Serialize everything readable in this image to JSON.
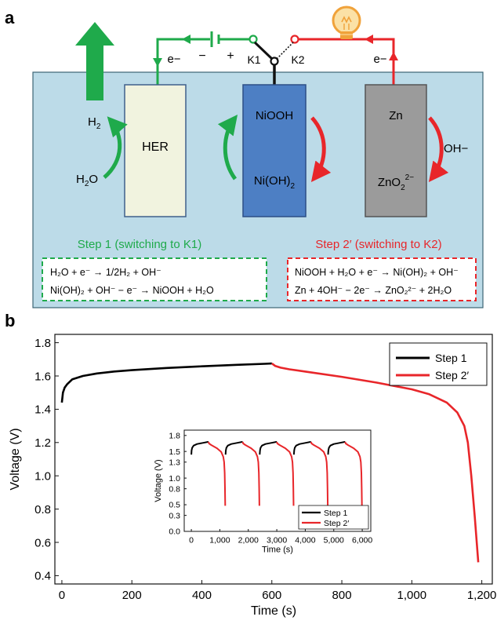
{
  "panel_a": {
    "panel_label": "a",
    "electrodes": {
      "her": {
        "label": "HER"
      },
      "nickel": {
        "top": "NiOOH",
        "bottom": "Ni(OH)",
        "bottom_sub": "2"
      },
      "zinc": {
        "top": "Zn",
        "bottom": "ZnO",
        "bottom_sub": "2",
        "bottom_sup": "2−"
      }
    },
    "gas_labels": {
      "h2": "H",
      "h2_sub": "2",
      "h2o": "H",
      "h2o_sub": "2",
      "h2o_tail": "O"
    },
    "ion_label": "OH−",
    "switch_labels": {
      "k1": "K1",
      "k2": "K2"
    },
    "battery_signs": {
      "minus": "−",
      "plus": "+"
    },
    "electron_label": "e−",
    "step1": {
      "title": "Step 1 (switching to K1)",
      "eq1": "H₂O + e⁻ → 1/2H₂ + OH⁻",
      "eq2": "Ni(OH)₂ + OH⁻ − e⁻ → NiOOH + H₂O"
    },
    "step2": {
      "title": "Step 2′ (switching to K2)",
      "eq1": "NiOOH + H₂O + e⁻ → Ni(OH)₂ + OH⁻",
      "eq2": "Zn + 4OH⁻ − 2e⁻ → ZnO₂²⁻ + 2H₂O"
    },
    "colors": {
      "electrolyte": "#bcdbe8",
      "her_electrode": "#f1f3df",
      "nickel_electrode": "#4d7fc4",
      "zinc_electrode": "#9b9b9b",
      "green": "#1faa4b",
      "red": "#e8262a",
      "bulb": "#f0a23a"
    }
  },
  "panel_b": {
    "panel_label": "b",
    "chart_data": [
      {
        "type": "line",
        "xlabel": "Time (s)",
        "ylabel": "Voltage (V)",
        "xlim": [
          -20,
          1230
        ],
        "ylim": [
          0.35,
          1.85
        ],
        "xticks": [
          0,
          200,
          400,
          600,
          800,
          1000,
          1200
        ],
        "xtick_labels": [
          "0",
          "200",
          "400",
          "600",
          "800",
          "1,000",
          "1,200"
        ],
        "yticks": [
          0.4,
          0.6,
          0.8,
          1.0,
          1.2,
          1.4,
          1.6,
          1.8
        ],
        "ytick_labels": [
          "0.4",
          "0.6",
          "0.8",
          "1.0",
          "1.2",
          "1.4",
          "1.6",
          "1.8"
        ],
        "legend": "top-right",
        "series": [
          {
            "name": "Step 1",
            "color": "#000000",
            "x": [
              0,
              3,
              8,
              15,
              30,
              60,
              100,
              150,
              200,
              300,
              400,
              500,
              580,
              600
            ],
            "y": [
              1.44,
              1.5,
              1.53,
              1.55,
              1.58,
              1.6,
              1.615,
              1.627,
              1.635,
              1.648,
              1.658,
              1.667,
              1.673,
              1.675
            ]
          },
          {
            "name": "Step 2′",
            "color": "#e8262a",
            "x": [
              600,
              610,
              625,
              650,
              700,
              800,
              900,
              1000,
              1050,
              1100,
              1130,
              1150,
              1160,
              1170,
              1180,
              1190
            ],
            "y": [
              1.675,
              1.66,
              1.65,
              1.64,
              1.625,
              1.595,
              1.56,
              1.52,
              1.49,
              1.44,
              1.38,
              1.3,
              1.2,
              1.0,
              0.75,
              0.48
            ]
          }
        ]
      },
      {
        "type": "line",
        "inset": true,
        "xlabel": "Time (s)",
        "ylabel": "Voltage (V)",
        "xlim": [
          -250,
          6300
        ],
        "ylim": [
          0.0,
          1.9
        ],
        "xticks": [
          0,
          1000,
          2000,
          3000,
          4000,
          5000,
          6000
        ],
        "xtick_labels": [
          "0",
          "1,000",
          "2,000",
          "3,000",
          "4,000",
          "5,000",
          "6,000"
        ],
        "yticks": [
          0.0,
          0.3,
          0.5,
          0.8,
          1.0,
          1.3,
          1.5,
          1.8
        ],
        "ytick_labels": [
          "0.0",
          "0.3",
          "0.5",
          "0.8",
          "1.0",
          "1.3",
          "1.5",
          "1.8"
        ],
        "legend": "bottom-right",
        "cycle_starts": [
          0,
          1200,
          2400,
          3600,
          4800
        ],
        "charge_duration": 600,
        "discharge_duration": 590,
        "series": [
          {
            "name": "Step 1",
            "color": "#000000",
            "cycle_x": [
              0,
              10,
              30,
              80,
              200,
              400,
              600
            ],
            "cycle_y": [
              1.44,
              1.52,
              1.57,
              1.61,
              1.64,
              1.66,
              1.68
            ]
          },
          {
            "name": "Step 2′",
            "color": "#e8262a",
            "cycle_x": [
              600,
              620,
              700,
              900,
              1050,
              1120,
              1150,
              1170,
              1180,
              1190
            ],
            "cycle_y": [
              1.68,
              1.65,
              1.62,
              1.56,
              1.49,
              1.4,
              1.3,
              1.1,
              0.8,
              0.48
            ]
          }
        ]
      }
    ]
  }
}
